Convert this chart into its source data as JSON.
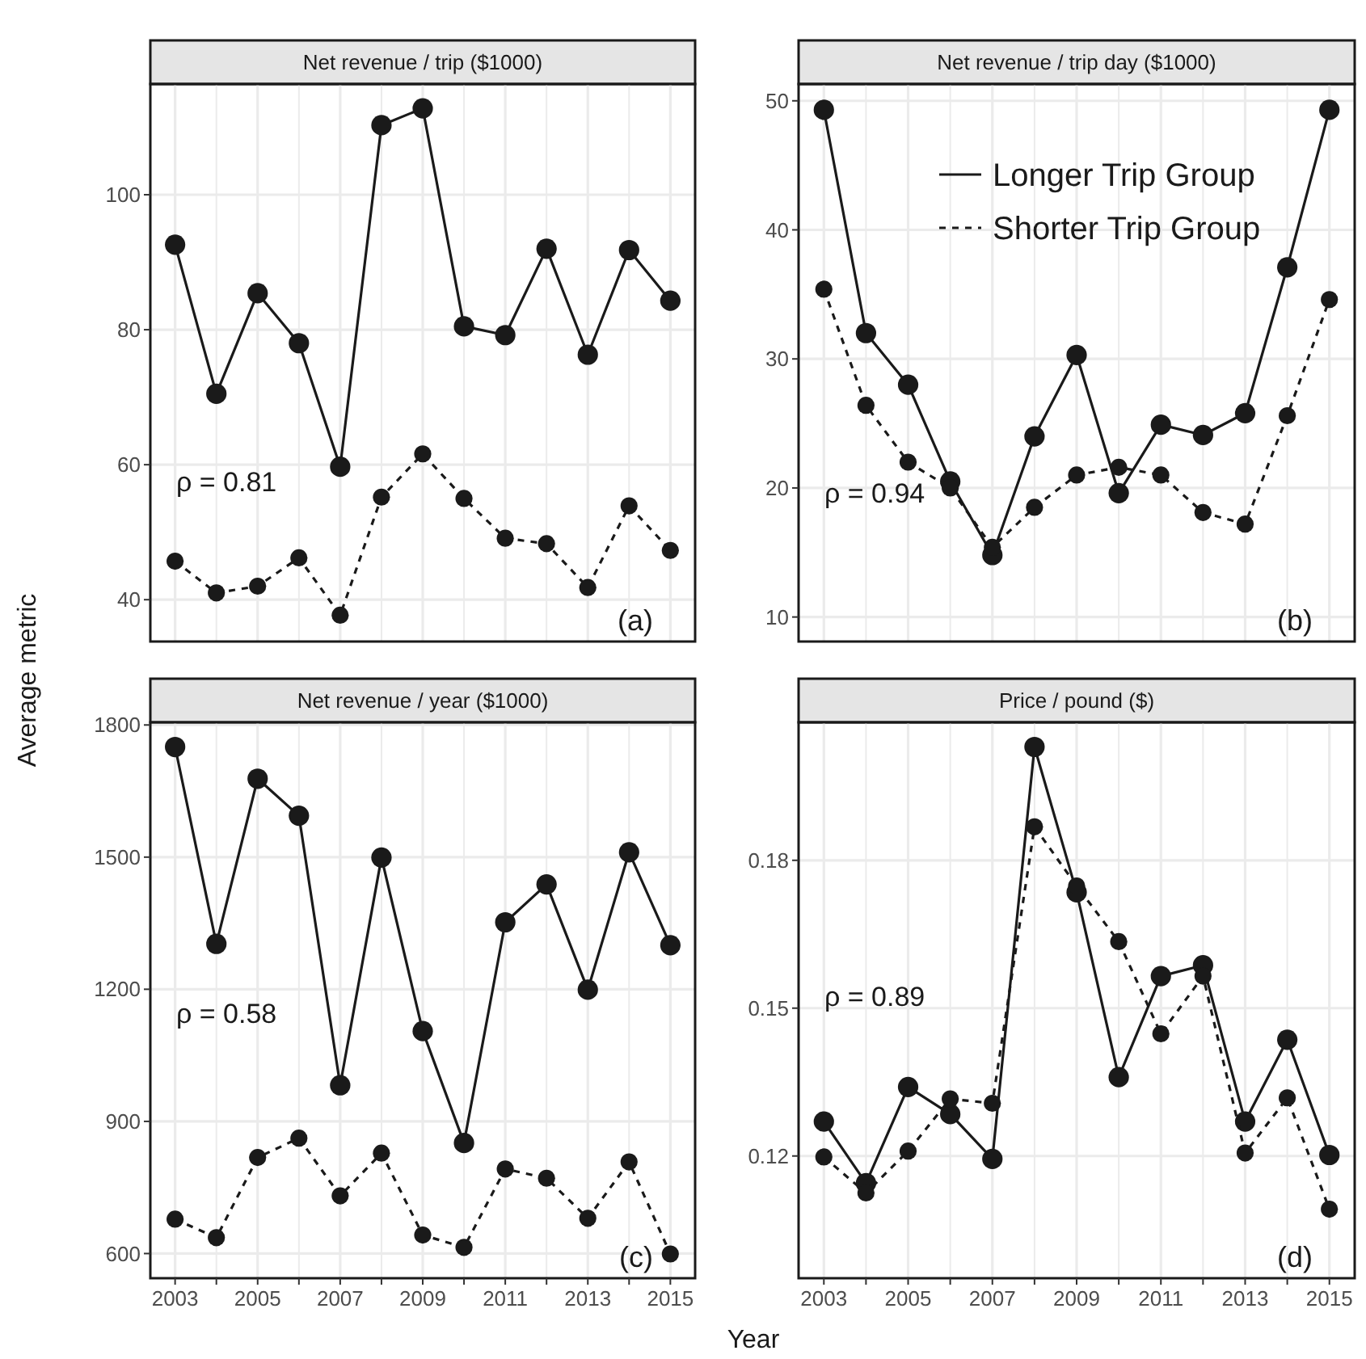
{
  "chart_data": [
    {
      "type": "line",
      "title": "Net revenue / trip ($1000)",
      "ylabel": "Average metric",
      "x": [
        2003,
        2004,
        2005,
        2006,
        2007,
        2008,
        2009,
        2010,
        2011,
        2012,
        2013,
        2014,
        2015
      ],
      "xlim": [
        2002.4,
        2015.6
      ],
      "xticks": [
        2003,
        {
          "value": 2004,
          "label": null
        },
        2005,
        {
          "value": 2006,
          "label": null
        },
        2007,
        {
          "value": 2008,
          "label": null
        },
        2009,
        {
          "value": 2010,
          "label": null
        },
        2011,
        {
          "value": 2012,
          "label": null
        },
        2013,
        {
          "value": 2014,
          "label": null
        },
        2015
      ],
      "ylim": [
        33.8,
        116.4
      ],
      "yticks": [
        40,
        60,
        80,
        100
      ],
      "grid": true,
      "marker": "circle",
      "tick_labels": "y",
      "annotations": [
        "ρ = 0.81",
        "(a)"
      ],
      "series": [
        {
          "color": "#1a1a1a",
          "line_style": "solid",
          "values": [
            92.6,
            70.5,
            85.4,
            78,
            59.7,
            110.3,
            112.8,
            80.5,
            79.2,
            92,
            76.3,
            91.8,
            84.3
          ]
        },
        {
          "color": "#1a1a1a",
          "line_style": "dashed",
          "values": [
            45.7,
            41,
            42,
            46.2,
            37.7,
            55.2,
            61.6,
            55,
            49.1,
            48.3,
            41.8,
            53.9,
            47.3
          ]
        }
      ]
    },
    {
      "type": "line",
      "title": "Net revenue / trip day ($1000)",
      "x": [
        2003,
        2004,
        2005,
        2006,
        2007,
        2008,
        2009,
        2010,
        2011,
        2012,
        2013,
        2014,
        2015
      ],
      "xlim": [
        2002.4,
        2015.6
      ],
      "xticks": [
        2003,
        {
          "value": 2004,
          "label": null
        },
        2005,
        {
          "value": 2006,
          "label": null
        },
        2007,
        {
          "value": 2008,
          "label": null
        },
        2009,
        {
          "value": 2010,
          "label": null
        },
        2011,
        {
          "value": 2012,
          "label": null
        },
        2013,
        {
          "value": 2014,
          "label": null
        },
        2015
      ],
      "ylim": [
        8.1,
        51.3
      ],
      "yticks": [
        10,
        20,
        30,
        40,
        50
      ],
      "grid": true,
      "marker": "circle",
      "tick_labels": "y",
      "legend": "top",
      "annotations": [
        "ρ = 0.94",
        "(b)"
      ],
      "series": [
        {
          "name": "Longer Trip Group",
          "color": "#1a1a1a",
          "line_style": "solid",
          "values": [
            49.3,
            32,
            28,
            20.5,
            14.8,
            24,
            30.3,
            19.6,
            24.9,
            24.1,
            25.8,
            37.1,
            49.3
          ]
        },
        {
          "name": "Shorter Trip Group",
          "color": "#1a1a1a",
          "line_style": "dashed",
          "values": [
            35.4,
            26.4,
            22,
            20,
            15.4,
            18.5,
            21,
            21.6,
            21,
            18.1,
            17.2,
            25.6,
            34.6
          ]
        }
      ]
    },
    {
      "type": "line",
      "title": "Net revenue / year ($1000)",
      "xlabel": "Year",
      "x": [
        2003,
        2004,
        2005,
        2006,
        2007,
        2008,
        2009,
        2010,
        2011,
        2012,
        2013,
        2014,
        2015
      ],
      "xlim": [
        2002.4,
        2015.6
      ],
      "xticks": [
        2003,
        {
          "value": 2004,
          "label": null
        },
        2005,
        {
          "value": 2006,
          "label": null
        },
        2007,
        {
          "value": 2008,
          "label": null
        },
        2009,
        {
          "value": 2010,
          "label": null
        },
        2011,
        {
          "value": 2012,
          "label": null
        },
        2013,
        {
          "value": 2014,
          "label": null
        },
        2015
      ],
      "ylim": [
        544,
        1806
      ],
      "yticks": [
        600,
        900,
        1200,
        1500,
        1800
      ],
      "grid": true,
      "marker": "circle",
      "annotations": [
        "ρ = 0.58",
        "(c)"
      ],
      "series": [
        {
          "color": "#1a1a1a",
          "line_style": "solid",
          "values": [
            1750,
            1303,
            1678,
            1594,
            982,
            1499,
            1105,
            851,
            1352,
            1438,
            1199,
            1511,
            1300
          ]
        },
        {
          "color": "#1a1a1a",
          "line_style": "dashed",
          "values": [
            678,
            636,
            818,
            862,
            731,
            828,
            642,
            614,
            792,
            771,
            680,
            808,
            599
          ]
        }
      ]
    },
    {
      "type": "line",
      "title": "Price / pound ($)",
      "x": [
        2003,
        2004,
        2005,
        2006,
        2007,
        2008,
        2009,
        2010,
        2011,
        2012,
        2013,
        2014,
        2015
      ],
      "xlim": [
        2002.4,
        2015.6
      ],
      "xticks": [
        2003,
        {
          "value": 2004,
          "label": null
        },
        2005,
        {
          "value": 2006,
          "label": null
        },
        2007,
        {
          "value": 2008,
          "label": null
        },
        2009,
        {
          "value": 2010,
          "label": null
        },
        2011,
        {
          "value": 2012,
          "label": null
        },
        2013,
        {
          "value": 2014,
          "label": null
        },
        2015
      ],
      "ylim": [
        0.0952,
        0.208
      ],
      "yticks": [
        0.12,
        0.15,
        0.18
      ],
      "grid": true,
      "marker": "circle",
      "annotations": [
        "ρ = 0.89",
        "(d)"
      ],
      "series": [
        {
          "color": "#1a1a1a",
          "line_style": "solid",
          "values": [
            0.127,
            0.1145,
            0.134,
            0.1285,
            0.1194,
            0.203,
            0.1735,
            0.136,
            0.1565,
            0.1587,
            0.127,
            0.1436,
            0.1202
          ]
        },
        {
          "color": "#1a1a1a",
          "line_style": "dashed",
          "values": [
            0.1198,
            0.1125,
            0.121,
            0.1316,
            0.1307,
            0.1868,
            0.1748,
            0.1635,
            0.1448,
            0.1565,
            0.1206,
            0.1318,
            0.1092
          ]
        }
      ]
    }
  ]
}
